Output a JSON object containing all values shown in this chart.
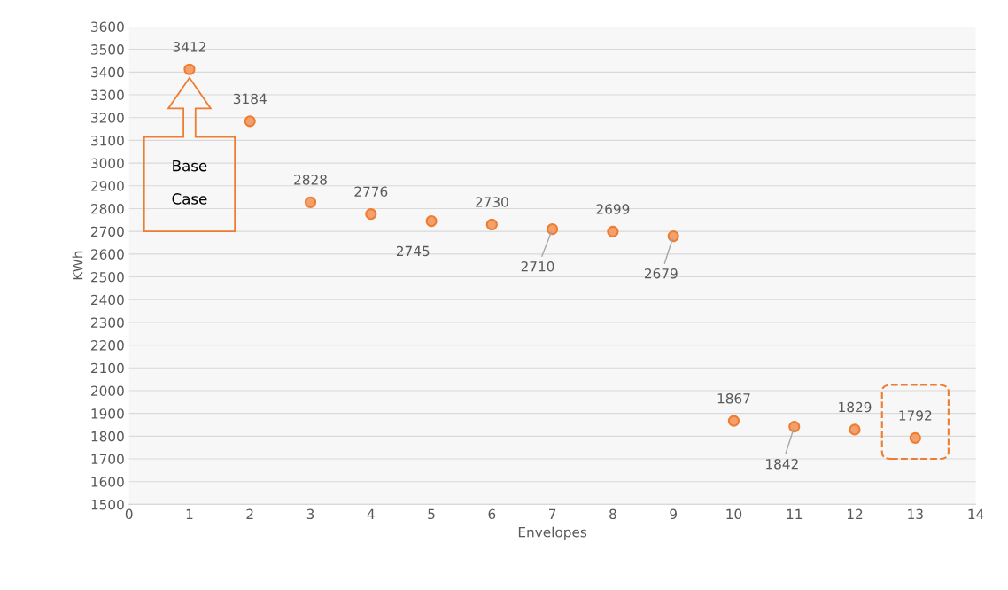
{
  "chart_data": {
    "type": "scatter",
    "xlabel": "Envelopes",
    "ylabel": "KWh",
    "x": [
      1,
      2,
      3,
      4,
      5,
      6,
      7,
      8,
      9,
      10,
      11,
      12,
      13
    ],
    "series": [
      {
        "color": "#ed7d31",
        "values": [
          3412,
          3184,
          2828,
          2776,
          2745,
          2730,
          2710,
          2699,
          2679,
          1867,
          1842,
          1829,
          1792
        ]
      }
    ],
    "data_labels": true,
    "marker": "circle",
    "grid": "y",
    "xlim": [
      0,
      14
    ],
    "xticks": [
      0,
      1,
      2,
      3,
      4,
      5,
      6,
      7,
      8,
      9,
      10,
      11,
      12,
      13,
      14
    ],
    "ylim": [
      1500,
      3600
    ],
    "yticks": [
      1500,
      1600,
      1700,
      1800,
      1900,
      2000,
      2100,
      2200,
      2300,
      2400,
      2500,
      2600,
      2700,
      2800,
      2900,
      3000,
      3100,
      3200,
      3300,
      3400,
      3500,
      3600
    ],
    "annotations": [
      "Base\nCase"
    ]
  }
}
